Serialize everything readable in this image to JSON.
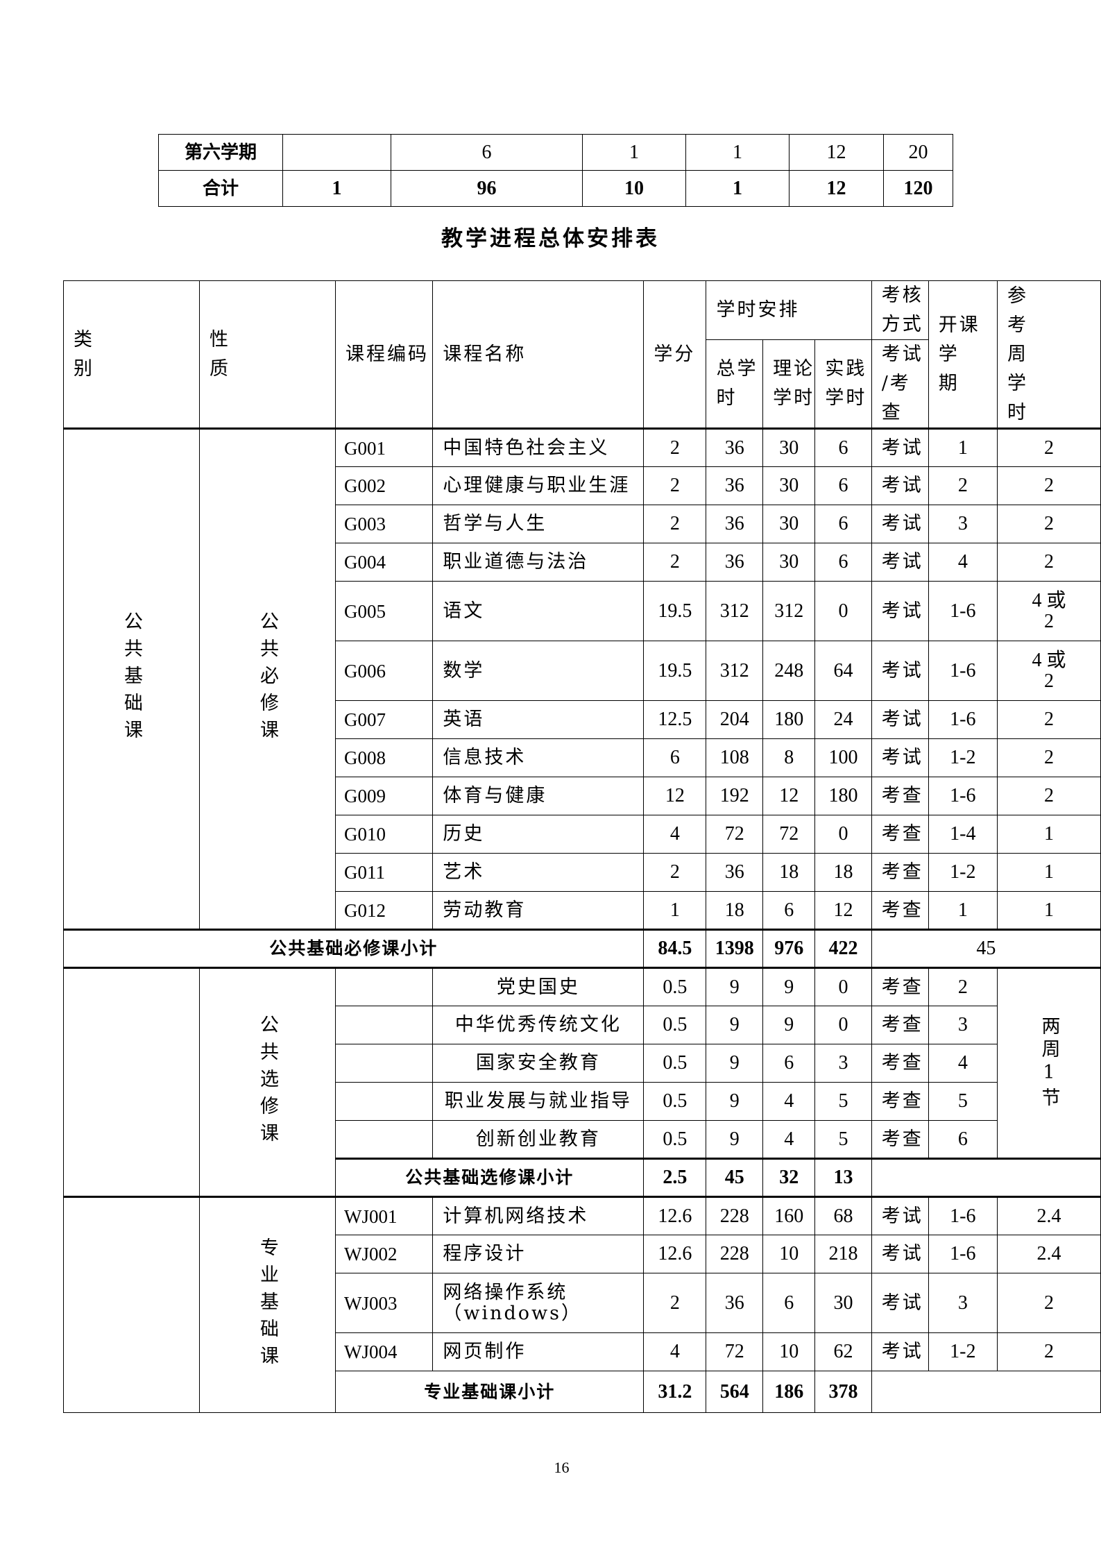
{
  "summary_table": {
    "rows": [
      {
        "label": "第六学期",
        "cells": [
          "",
          "6",
          "1",
          "1",
          "12",
          "20"
        ]
      },
      {
        "label": "合计",
        "cells": [
          "1",
          "96",
          "10",
          "1",
          "12",
          "120"
        ]
      }
    ]
  },
  "title": "教学进程总体安排表",
  "main_table": {
    "headers": {
      "category": "类\n别",
      "nature": "性\n质",
      "code": "课程编码",
      "name": "课程名称",
      "credit": "学分",
      "hours": "学时安排",
      "total_hours": "总学\n时",
      "theory_hours": "理论\n学时",
      "practice_hours": "实践\n学时",
      "assessment": "考核\n方式",
      "assessment_sub": "考试\n/考\n查",
      "semester": "开课学\n期",
      "weekly_hours": "参\n考\n周\n学\n时"
    },
    "public_basic": {
      "category": "公共基础课",
      "required": {
        "nature": "公共必修课",
        "rows": [
          [
            "G001",
            "中国特色社会主义",
            "2",
            "36",
            "30",
            "6",
            "考试",
            "1",
            "2"
          ],
          [
            "G002",
            "心理健康与职业生涯",
            "2",
            "36",
            "30",
            "6",
            "考试",
            "2",
            "2"
          ],
          [
            "G003",
            "哲学与人生",
            "2",
            "36",
            "30",
            "6",
            "考试",
            "3",
            "2"
          ],
          [
            "G004",
            "职业道德与法治",
            "2",
            "36",
            "30",
            "6",
            "考试",
            "4",
            "2"
          ],
          [
            "G005",
            "语文",
            "19.5",
            "312",
            "312",
            "0",
            "考试",
            "1-6",
            "4 或\n2"
          ],
          [
            "G006",
            "数学",
            "19.5",
            "312",
            "248",
            "64",
            "考试",
            "1-6",
            "4 或\n2"
          ],
          [
            "G007",
            "英语",
            "12.5",
            "204",
            "180",
            "24",
            "考试",
            "1-6",
            "2"
          ],
          [
            "G008",
            "信息技术",
            "6",
            "108",
            "8",
            "100",
            "考试",
            "1-2",
            "2"
          ],
          [
            "G009",
            "体育与健康",
            "12",
            "192",
            "12",
            "180",
            "考查",
            "1-6",
            "2"
          ],
          [
            "G010",
            "历史",
            "4",
            "72",
            "72",
            "0",
            "考查",
            "1-4",
            "1"
          ],
          [
            "G011",
            "艺术",
            "2",
            "36",
            "18",
            "18",
            "考查",
            "1-2",
            "1"
          ],
          [
            "G012",
            "劳动教育",
            "1",
            "18",
            "6",
            "12",
            "考查",
            "1",
            "1"
          ]
        ],
        "subtotal": {
          "label": "公共基础必修课小计",
          "credit": "84.5",
          "total": "1398",
          "theory": "976",
          "practice": "422",
          "weekly": "45"
        }
      },
      "elective": {
        "nature": "公共选修课",
        "weekly": "两周1节",
        "rows": [
          [
            "",
            "党史国史",
            "0.5",
            "9",
            "9",
            "0",
            "考查",
            "2"
          ],
          [
            "",
            "中华优秀传统文化",
            "0.5",
            "9",
            "9",
            "0",
            "考查",
            "3"
          ],
          [
            "",
            "国家安全教育",
            "0.5",
            "9",
            "6",
            "3",
            "考查",
            "4"
          ],
          [
            "",
            "职业发展与就业指导",
            "0.5",
            "9",
            "4",
            "5",
            "考查",
            "5"
          ],
          [
            "",
            "创新创业教育",
            "0.5",
            "9",
            "4",
            "5",
            "考查",
            "6"
          ]
        ],
        "subtotal": {
          "label": "公共基础选修课小计",
          "credit": "2.5",
          "total": "45",
          "theory": "32",
          "practice": "13"
        }
      }
    },
    "professional_basic": {
      "nature": "专业基础课",
      "rows": [
        [
          "WJ001",
          "计算机网络技术",
          "12.6",
          "228",
          "160",
          "68",
          "考试",
          "1-6",
          "2.4"
        ],
        [
          "WJ002",
          "程序设计",
          "12.6",
          "228",
          "10",
          "218",
          "考试",
          "1-6",
          "2.4"
        ],
        [
          "WJ003",
          "网络操作系统\n（windows）",
          "2",
          "36",
          "6",
          "30",
          "考试",
          "3",
          "2"
        ],
        [
          "WJ004",
          "网页制作",
          "4",
          "72",
          "10",
          "62",
          "考试",
          "1-2",
          "2"
        ]
      ],
      "subtotal": {
        "label": "专业基础课小计",
        "credit": "31.2",
        "total": "564",
        "theory": "186",
        "practice": "378"
      }
    }
  },
  "page_number": "16"
}
